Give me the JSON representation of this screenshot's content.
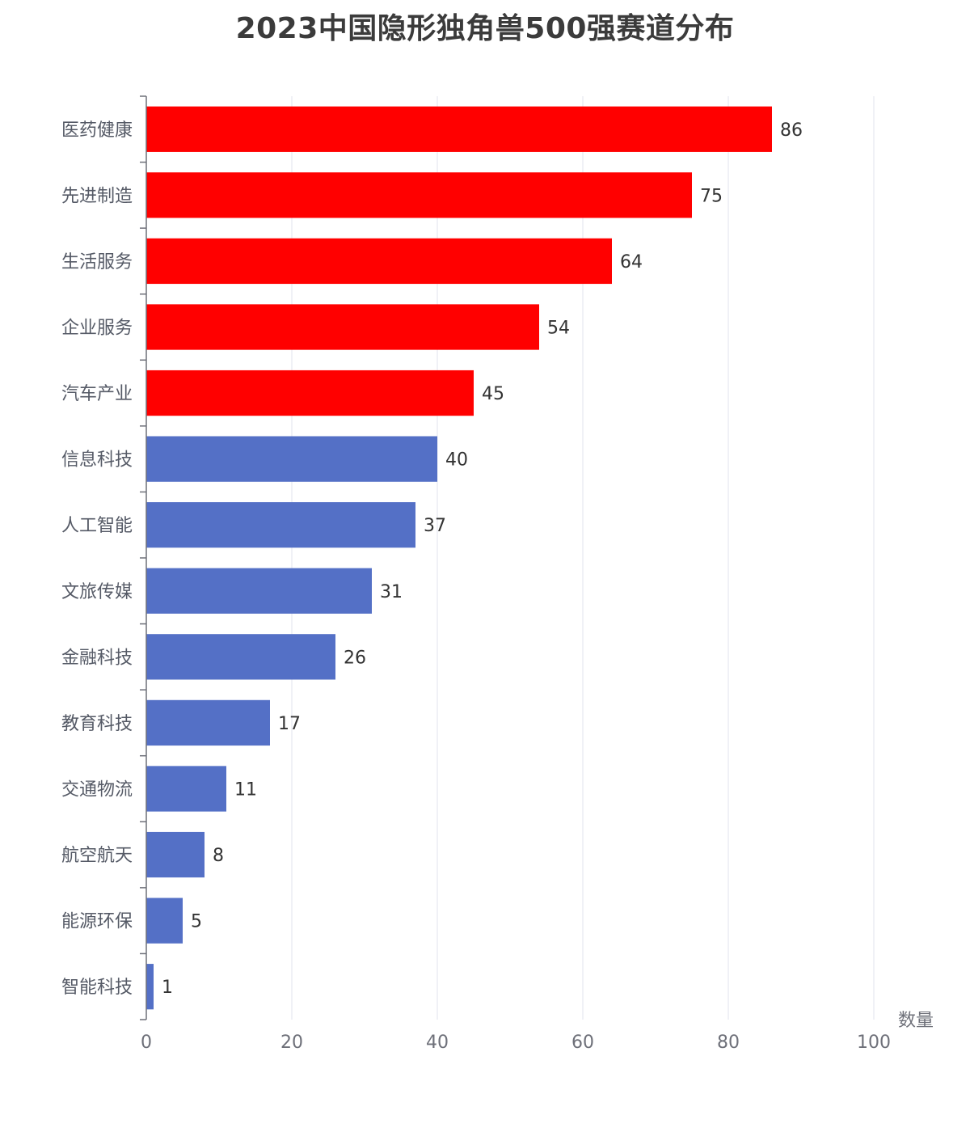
{
  "chart_data": {
    "type": "bar",
    "orientation": "horizontal",
    "title": "2023中国隐形独角兽500强赛道分布",
    "xlabel": "数量",
    "ylabel": "",
    "xlim": [
      0,
      100
    ],
    "x_ticks": [
      0,
      20,
      40,
      60,
      80,
      100
    ],
    "grid": true,
    "categories": [
      "医药健康",
      "先进制造",
      "生活服务",
      "企业服务",
      "汽车产业",
      "信息科技",
      "人工智能",
      "文旅传媒",
      "金融科技",
      "教育科技",
      "交通物流",
      "航空航天",
      "能源环保",
      "智能科技"
    ],
    "values": [
      86,
      75,
      64,
      54,
      45,
      40,
      37,
      31,
      26,
      17,
      11,
      8,
      5,
      1
    ],
    "highlight_count": 5,
    "colors": {
      "highlight": "#ff0000",
      "normal": "#5470c6",
      "grid": "#e0e3ee",
      "axis": "#6e7079"
    }
  }
}
